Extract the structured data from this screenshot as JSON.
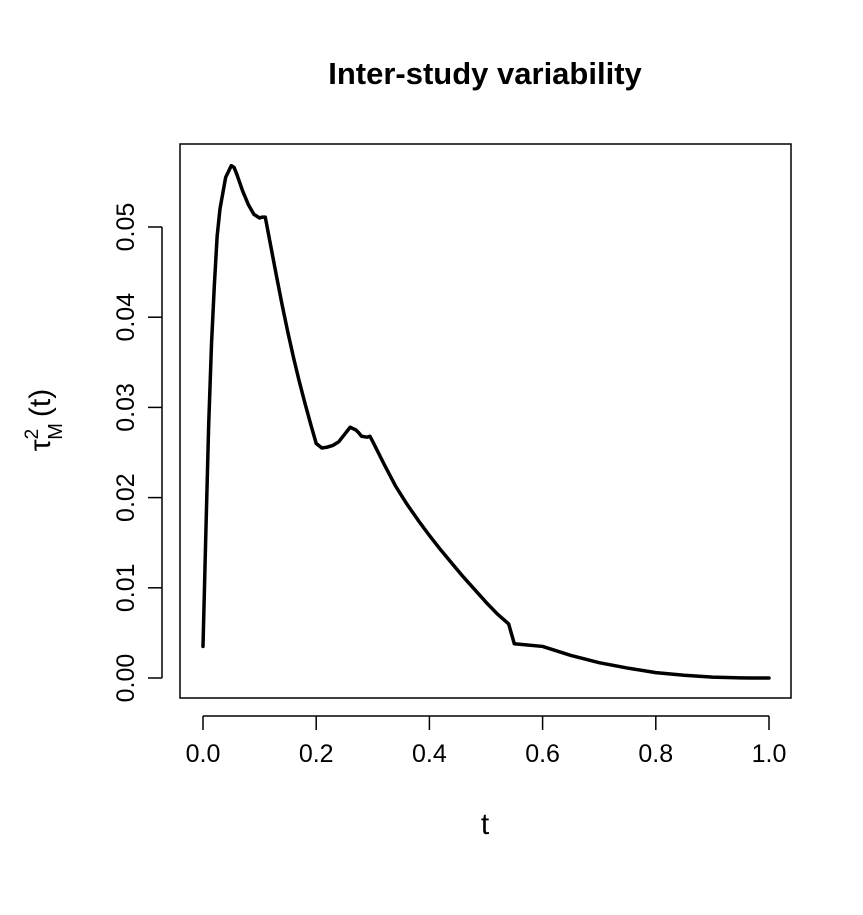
{
  "chart_data": {
    "type": "line",
    "title": "Inter-study variability",
    "xlabel": "t",
    "ylabel": {
      "base": "τ",
      "superscript": "2",
      "subscript": "M",
      "suffix": "(t)"
    },
    "xlim": [
      0.0,
      1.0
    ],
    "ylim": [
      0.0,
      0.056
    ],
    "x_ticks": [
      0.0,
      0.2,
      0.4,
      0.6,
      0.8,
      1.0
    ],
    "x_tick_labels": [
      "0.0",
      "0.2",
      "0.4",
      "0.6",
      "0.8",
      "1.0"
    ],
    "y_ticks": [
      0.0,
      0.01,
      0.02,
      0.03,
      0.04,
      0.05
    ],
    "y_tick_labels": [
      "0.00",
      "0.01",
      "0.02",
      "0.03",
      "0.04",
      "0.05"
    ],
    "grid": false,
    "legend": "none",
    "line_color": "#000000",
    "series": [
      {
        "x": [
          0.0,
          0.005,
          0.01,
          0.015,
          0.02,
          0.025,
          0.03,
          0.04,
          0.05,
          0.055,
          0.06,
          0.07,
          0.08,
          0.09,
          0.1,
          0.105,
          0.11,
          0.12,
          0.13,
          0.14,
          0.15,
          0.16,
          0.17,
          0.18,
          0.19,
          0.2,
          0.21,
          0.22,
          0.23,
          0.24,
          0.25,
          0.26,
          0.27,
          0.275,
          0.28,
          0.29,
          0.295,
          0.3,
          0.32,
          0.34,
          0.36,
          0.38,
          0.4,
          0.42,
          0.44,
          0.46,
          0.48,
          0.5,
          0.52,
          0.54,
          0.55,
          0.6,
          0.65,
          0.7,
          0.75,
          0.8,
          0.85,
          0.9,
          0.95,
          0.97,
          1.0
        ],
        "values": [
          0.0035,
          0.016,
          0.028,
          0.037,
          0.0435,
          0.049,
          0.052,
          0.0555,
          0.0568,
          0.0566,
          0.0558,
          0.054,
          0.0525,
          0.0514,
          0.051,
          0.0511,
          0.0511,
          0.0478,
          0.0445,
          0.0413,
          0.0383,
          0.0355,
          0.0329,
          0.0305,
          0.0282,
          0.026,
          0.0255,
          0.0256,
          0.0258,
          0.0262,
          0.027,
          0.0278,
          0.0275,
          0.0272,
          0.0268,
          0.0267,
          0.0268,
          0.0262,
          0.0237,
          0.0213,
          0.0193,
          0.0175,
          0.0158,
          0.0142,
          0.0127,
          0.0112,
          0.0098,
          0.0084,
          0.0071,
          0.006,
          0.0038,
          0.0035,
          0.0025,
          0.0017,
          0.0011,
          0.0006,
          0.0003,
          0.0001,
          2e-05,
          0.0,
          0.0
        ]
      }
    ]
  }
}
